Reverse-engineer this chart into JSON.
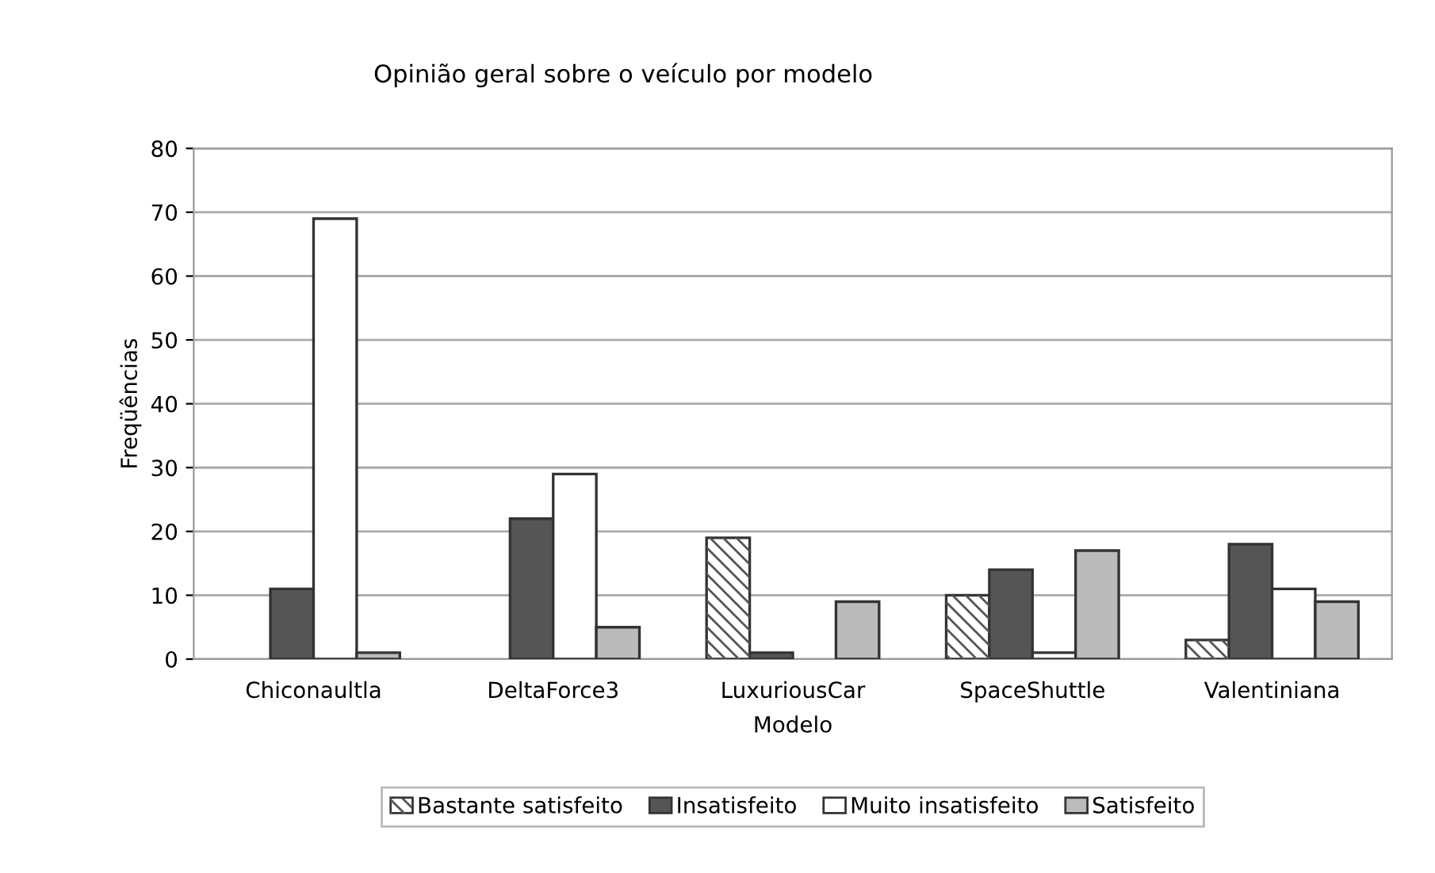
{
  "chart_data": {
    "type": "bar",
    "title": "Opinião geral sobre o veículo por modelo",
    "xlabel": "Modelo",
    "ylabel": "Freqüências",
    "categories": [
      "Chiconaultla",
      "DeltaForce3",
      "LuxuriousCar",
      "SpaceShuttle",
      "Valentiniana"
    ],
    "series": [
      {
        "name": "Bastante satisfeito",
        "color": "#ffffff",
        "values": [
          null,
          null,
          19,
          10,
          3
        ]
      },
      {
        "name": "Insatisfeito",
        "color": "#555555",
        "values": [
          11,
          22,
          1,
          14,
          18
        ]
      },
      {
        "name": "Muito insatisfeito",
        "color": "#ffffff",
        "values": [
          69,
          29,
          null,
          1,
          11
        ]
      },
      {
        "name": "Satisfeito",
        "color": "#bbbbbb",
        "values": [
          1,
          5,
          9,
          17,
          9
        ]
      }
    ],
    "ylim": [
      0,
      80
    ],
    "yticks": [
      0,
      10,
      20,
      30,
      40,
      50,
      60,
      70,
      80
    ],
    "grid": "y",
    "legend": "bottom"
  }
}
